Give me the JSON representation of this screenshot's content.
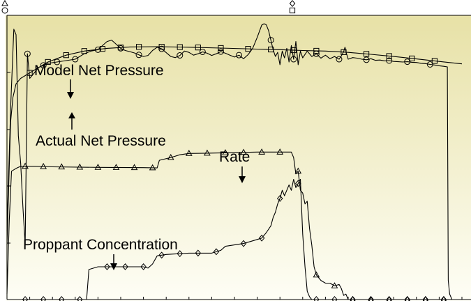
{
  "chart_data": {
    "type": "line",
    "title": "",
    "xlabel": "",
    "ylabel": "",
    "xlim": [
      0,
      100
    ],
    "ylim": [
      0,
      100
    ],
    "grid": false,
    "background": {
      "top": "#e7e1a6",
      "bottom": "#fefef6"
    },
    "series": [
      {
        "name": "Model Net Pressure",
        "marker": "square",
        "points": [
          [
            0.0,
            20
          ],
          [
            0.8,
            65
          ],
          [
            1.3,
            74
          ],
          [
            2.0,
            79
          ],
          [
            3.0,
            81
          ],
          [
            5,
            83
          ],
          [
            9,
            87
          ],
          [
            13,
            89.5
          ],
          [
            17,
            91
          ],
          [
            22,
            92
          ],
          [
            27,
            92.5
          ],
          [
            33,
            92.6
          ],
          [
            40,
            92.4
          ],
          [
            47,
            92.1
          ],
          [
            55,
            91.7
          ],
          [
            60,
            91.5
          ],
          [
            65,
            91.2
          ],
          [
            70,
            91
          ],
          [
            75,
            90.5
          ],
          [
            80,
            89.8
          ],
          [
            85,
            89
          ],
          [
            90,
            88.1
          ],
          [
            95,
            87.2
          ],
          [
            100,
            86.3
          ]
        ],
        "marker_x": [
          5,
          9,
          13,
          17,
          21,
          25,
          29,
          34,
          38,
          42,
          47,
          53,
          58,
          63,
          68,
          74,
          79,
          84,
          89,
          94
        ]
      },
      {
        "name": "Actual Net Pressure",
        "marker": "circle",
        "points": [
          [
            0.0,
            25
          ],
          [
            0.8,
            70
          ],
          [
            1.5,
            99
          ],
          [
            2.0,
            97
          ],
          [
            2.5,
            60
          ],
          [
            3.0,
            50
          ],
          [
            3.5,
            34
          ],
          [
            4.0,
            20
          ],
          [
            4.5,
            90
          ],
          [
            5,
            81
          ],
          [
            6,
            83
          ],
          [
            7,
            85
          ],
          [
            9,
            86.5
          ],
          [
            11,
            87
          ],
          [
            13,
            87.5
          ],
          [
            15,
            88
          ],
          [
            17,
            90
          ],
          [
            18.5,
            91
          ],
          [
            20,
            91.5
          ],
          [
            21,
            93
          ],
          [
            22,
            94.5
          ],
          [
            23,
            95
          ],
          [
            24,
            93.5
          ],
          [
            25,
            92
          ],
          [
            26,
            91.2
          ],
          [
            27,
            90.8
          ],
          [
            28,
            90.3
          ],
          [
            29,
            89.6
          ],
          [
            30,
            89
          ],
          [
            31,
            89.4
          ],
          [
            32,
            91.2
          ],
          [
            33,
            92.4
          ],
          [
            34,
            91.8
          ],
          [
            35,
            90.4
          ],
          [
            36,
            89
          ],
          [
            37,
            88.6
          ],
          [
            38,
            89.4
          ],
          [
            39,
            91
          ],
          [
            40,
            90.5
          ],
          [
            41,
            89.5
          ],
          [
            42,
            90
          ],
          [
            43,
            90.7
          ],
          [
            44,
            90.2
          ],
          [
            45,
            89.4
          ],
          [
            46,
            90
          ],
          [
            47,
            90.8
          ],
          [
            48,
            90.2
          ],
          [
            49,
            89.5
          ],
          [
            50,
            88.8
          ],
          [
            51,
            89.5
          ],
          [
            52,
            88.2
          ],
          [
            53,
            89.7
          ],
          [
            54,
            92
          ],
          [
            55,
            96
          ],
          [
            56,
            100.5
          ],
          [
            56.5,
            101
          ],
          [
            57,
            100.6
          ],
          [
            57.5,
            98.5
          ],
          [
            58,
            95
          ],
          [
            58.5,
            91.5
          ],
          [
            59,
            89
          ],
          [
            59.5,
            90.5
          ],
          [
            60,
            86
          ],
          [
            60.5,
            91
          ],
          [
            61,
            88.5
          ],
          [
            61.5,
            92
          ],
          [
            62,
            87
          ],
          [
            62.5,
            93
          ],
          [
            63,
            88
          ],
          [
            63.5,
            94.5
          ],
          [
            64,
            86
          ],
          [
            64.5,
            91
          ],
          [
            65,
            88.5
          ],
          [
            66,
            91
          ],
          [
            67,
            89
          ],
          [
            68,
            90
          ],
          [
            69,
            88.4
          ],
          [
            70,
            89.5
          ],
          [
            71,
            88.2
          ],
          [
            72,
            89
          ],
          [
            73,
            88
          ],
          [
            73.5,
            89.2
          ],
          [
            74,
            90.8
          ],
          [
            74.3,
            92.4
          ],
          [
            74.6,
            90.2
          ],
          [
            75,
            88
          ],
          [
            76,
            88.6
          ],
          [
            77,
            88.4
          ],
          [
            78,
            88
          ],
          [
            79,
            87.8
          ],
          [
            80,
            88.2
          ],
          [
            81,
            87.6
          ],
          [
            82,
            87.7
          ],
          [
            83,
            87.4
          ],
          [
            84,
            87.5
          ],
          [
            85,
            87.2
          ],
          [
            86,
            87.1
          ],
          [
            87,
            87
          ],
          [
            88,
            87.1
          ],
          [
            89,
            86.9
          ],
          [
            90,
            86.8
          ],
          [
            91,
            86.5
          ],
          [
            92,
            86.4
          ],
          [
            93,
            86.1
          ],
          [
            94,
            85.9
          ],
          [
            95,
            85.6
          ],
          [
            96,
            85.4
          ],
          [
            96.8,
            85.2
          ],
          [
            97,
            7
          ],
          [
            97.3,
            2
          ],
          [
            97.8,
            0
          ]
        ],
        "marker_x": [
          4.5,
          8,
          11,
          15,
          20,
          25,
          29,
          34,
          38,
          43,
          47,
          51,
          58,
          63,
          68,
          73,
          79,
          84,
          88,
          93
        ]
      },
      {
        "name": "Rate",
        "marker": "triangle",
        "points": [
          [
            0,
            2
          ],
          [
            0.5,
            29
          ],
          [
            1.0,
            47
          ],
          [
            2,
            48
          ],
          [
            3,
            48.8
          ],
          [
            6,
            48.8
          ],
          [
            10,
            48.6
          ],
          [
            20,
            48.4
          ],
          [
            30,
            48.3
          ],
          [
            33,
            48.2
          ],
          [
            33.5,
            51
          ],
          [
            36,
            52
          ],
          [
            38,
            53
          ],
          [
            40,
            53.5
          ],
          [
            44,
            53.6
          ],
          [
            50,
            53.8
          ],
          [
            55,
            54
          ],
          [
            60,
            54
          ],
          [
            62.5,
            54
          ],
          [
            63,
            52
          ],
          [
            63.5,
            46
          ],
          [
            64,
            47
          ],
          [
            64.5,
            40
          ],
          [
            65,
            39
          ],
          [
            65.5,
            35
          ],
          [
            66,
            36
          ],
          [
            66.5,
            26
          ],
          [
            67,
            20
          ],
          [
            67.5,
            12
          ],
          [
            68,
            9
          ],
          [
            68.5,
            8
          ],
          [
            69,
            7
          ],
          [
            70,
            6
          ],
          [
            71,
            6
          ],
          [
            72,
            5
          ],
          [
            73,
            5.5
          ],
          [
            73.5,
            4
          ],
          [
            74,
            1.5
          ],
          [
            74.5,
            2
          ],
          [
            75,
            0
          ],
          [
            100,
            0
          ]
        ],
        "marker_x": [
          4,
          8,
          12,
          16,
          20,
          24,
          28,
          32,
          36,
          40,
          44,
          48,
          52,
          56,
          60,
          64,
          68,
          72,
          76,
          80,
          84,
          88,
          92,
          96
        ]
      },
      {
        "name": "Proppant Concentration",
        "marker": "diamond",
        "points": [
          [
            0,
            0
          ],
          [
            17.5,
            0
          ],
          [
            18,
            11
          ],
          [
            20,
            12
          ],
          [
            24,
            12
          ],
          [
            28,
            12
          ],
          [
            30,
            12
          ],
          [
            31,
            11.5
          ],
          [
            32,
            13
          ],
          [
            33,
            16
          ],
          [
            35,
            16.5
          ],
          [
            40,
            17
          ],
          [
            45,
            17
          ],
          [
            47,
            18
          ],
          [
            48,
            19.5
          ],
          [
            50,
            20
          ],
          [
            52,
            20.5
          ],
          [
            53,
            21
          ],
          [
            55,
            22
          ],
          [
            56,
            22.5
          ],
          [
            57,
            24.5
          ],
          [
            58,
            27
          ],
          [
            58.5,
            30
          ],
          [
            59,
            32
          ],
          [
            59.5,
            35
          ],
          [
            60,
            37
          ],
          [
            60.5,
            40
          ],
          [
            61,
            38
          ],
          [
            61.5,
            40
          ],
          [
            62,
            42
          ],
          [
            62.5,
            40
          ],
          [
            63,
            44
          ],
          [
            63.5,
            41
          ],
          [
            64,
            42.5
          ],
          [
            64.5,
            44
          ],
          [
            65,
            24
          ],
          [
            65.5,
            12
          ],
          [
            66,
            3
          ],
          [
            66.5,
            1
          ],
          [
            67,
            0
          ],
          [
            100,
            0
          ]
        ],
        "marker_x": [
          4,
          8,
          12,
          16,
          22,
          26,
          30,
          34,
          38,
          42,
          46,
          52,
          56,
          60,
          64,
          68,
          72,
          76,
          80,
          84,
          88,
          92,
          96
        ]
      }
    ],
    "annotations": [
      {
        "text": "Model Net Pressure",
        "target": "Model Net Pressure"
      },
      {
        "text": "Actual Net Pressure",
        "target": "Actual Net Pressure"
      },
      {
        "text": "Rate",
        "target": "Rate"
      },
      {
        "text": "Proppant Concentration",
        "target": "Proppant Concentration"
      }
    ],
    "top_axis_markers": [
      "triangle",
      "circle",
      "diamond",
      "square"
    ]
  }
}
